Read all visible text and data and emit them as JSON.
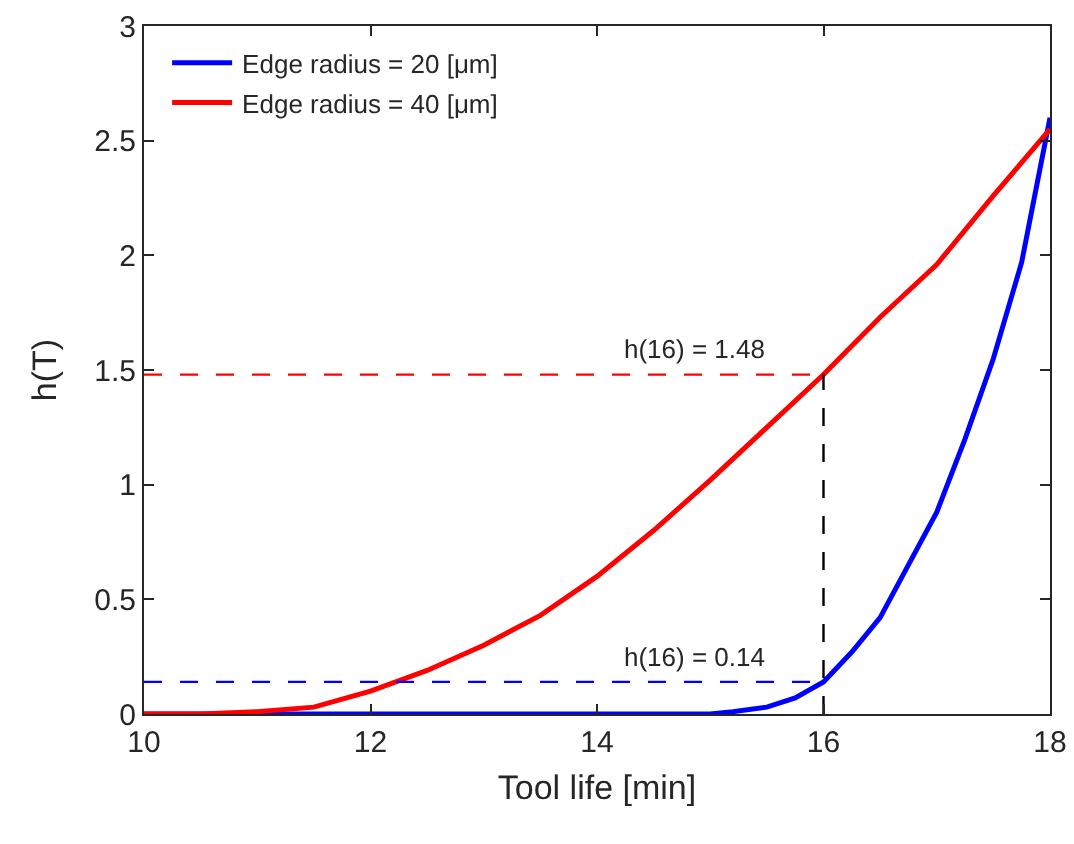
{
  "chart_data": {
    "type": "line",
    "xlabel": "Tool life [min]",
    "ylabel": "h(T)",
    "xlim": [
      10,
      18
    ],
    "xticks": [
      10,
      12,
      14,
      16,
      18
    ],
    "ylim": [
      0,
      3
    ],
    "yticks": [
      0,
      0.5,
      1,
      1.5,
      2,
      2.5,
      3
    ],
    "grid": false,
    "legend": "top left",
    "marker": "none",
    "line_style": "solid",
    "series": [
      {
        "name": "Edge radius = 20 [μm]",
        "color": "#0000ff",
        "x": [
          10,
          11,
          12,
          13,
          14,
          15,
          15.2,
          15.5,
          15.75,
          16,
          16.25,
          16.5,
          16.75,
          17,
          17.25,
          17.5,
          17.75,
          18
        ],
        "values": [
          0,
          0,
          0,
          0,
          0,
          0,
          0.01,
          0.03,
          0.07,
          0.14,
          0.27,
          0.42,
          0.65,
          0.88,
          1.2,
          1.55,
          1.97,
          2.6
        ]
      },
      {
        "name": "Edge radius = 40 [μm]",
        "color": "#ff0000",
        "x": [
          10,
          10.5,
          11,
          11.5,
          12,
          12.5,
          13,
          13.5,
          14,
          14.5,
          15,
          15.5,
          16,
          16.5,
          17,
          17.5,
          18
        ],
        "values": [
          0,
          0,
          0.01,
          0.03,
          0.1,
          0.19,
          0.3,
          0.43,
          0.6,
          0.8,
          1.02,
          1.25,
          1.48,
          1.73,
          1.96,
          2.26,
          2.55
        ]
      },
      {
        "color": "#ff0000",
        "line_style": "dashed",
        "x": [
          10,
          16
        ],
        "values": [
          1.48,
          1.48
        ]
      },
      {
        "color": "#0000ff",
        "line_style": "dashed",
        "x": [
          10,
          16
        ],
        "values": [
          0.14,
          0.14
        ]
      },
      {
        "color": "#000000",
        "line_style": "dashed",
        "x": [
          16,
          16
        ],
        "values": [
          0,
          1.48
        ]
      }
    ],
    "annotations": [
      {
        "text": "h(16) = 1.48",
        "x": 16,
        "y": 1.48
      },
      {
        "text": "h(16) = 0.14",
        "x": 16,
        "y": 0.14
      }
    ]
  }
}
